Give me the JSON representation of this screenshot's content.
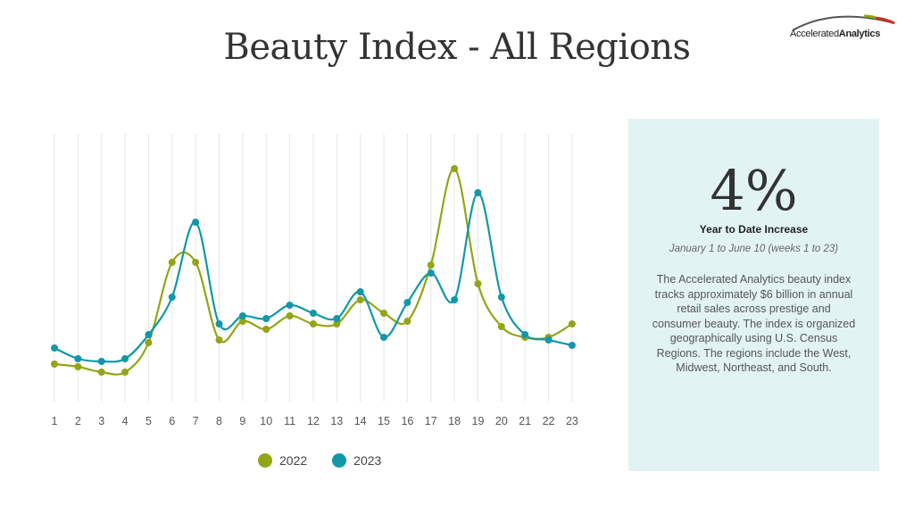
{
  "page": {
    "title": "Beauty Index - All Regions",
    "logo_regular": "Accelerated",
    "logo_bold": "Analytics"
  },
  "panel": {
    "big_number": "4%",
    "big_label": "Year to Date Increase",
    "date_range": "January 1 to June 10 (weeks 1 to 23)",
    "description": "The Accelerated Analytics beauty index tracks approximately $6 billion in annual retail sales across prestige and consumer beauty. The index is organized geographically using U.S. Census Regions.  The regions include the West, Midwest, Northeast, and South."
  },
  "colors": {
    "series_2022": "#93a516",
    "series_2023": "#1197a8",
    "gridline": "#e6e6e6",
    "panel_bg": "#e2f3f4"
  },
  "chart_data": {
    "type": "line",
    "categories": [
      "1",
      "2",
      "3",
      "4",
      "5",
      "6",
      "7",
      "8",
      "9",
      "10",
      "11",
      "12",
      "13",
      "14",
      "15",
      "16",
      "17",
      "18",
      "19",
      "20",
      "21",
      "22",
      "23"
    ],
    "x": [
      1,
      2,
      3,
      4,
      5,
      6,
      7,
      8,
      9,
      10,
      11,
      12,
      13,
      14,
      15,
      16,
      17,
      18,
      19,
      20,
      21,
      22,
      23
    ],
    "series": [
      {
        "name": "2022",
        "color": "#93a516",
        "values": [
          14,
          13,
          11,
          11,
          22,
          52,
          52,
          23,
          30,
          27,
          32,
          29,
          29,
          38,
          33,
          30,
          51,
          87,
          44,
          28,
          24,
          24,
          29
        ]
      },
      {
        "name": "2023",
        "color": "#1197a8",
        "values": [
          20,
          16,
          15,
          16,
          25,
          39,
          67,
          29,
          32,
          31,
          36,
          33,
          31,
          41,
          24,
          37,
          48,
          38,
          78,
          39,
          25,
          23,
          21
        ]
      }
    ],
    "ylim": [
      0,
      100
    ],
    "grid": "vertical",
    "legend": "bottom",
    "smooth": true
  }
}
